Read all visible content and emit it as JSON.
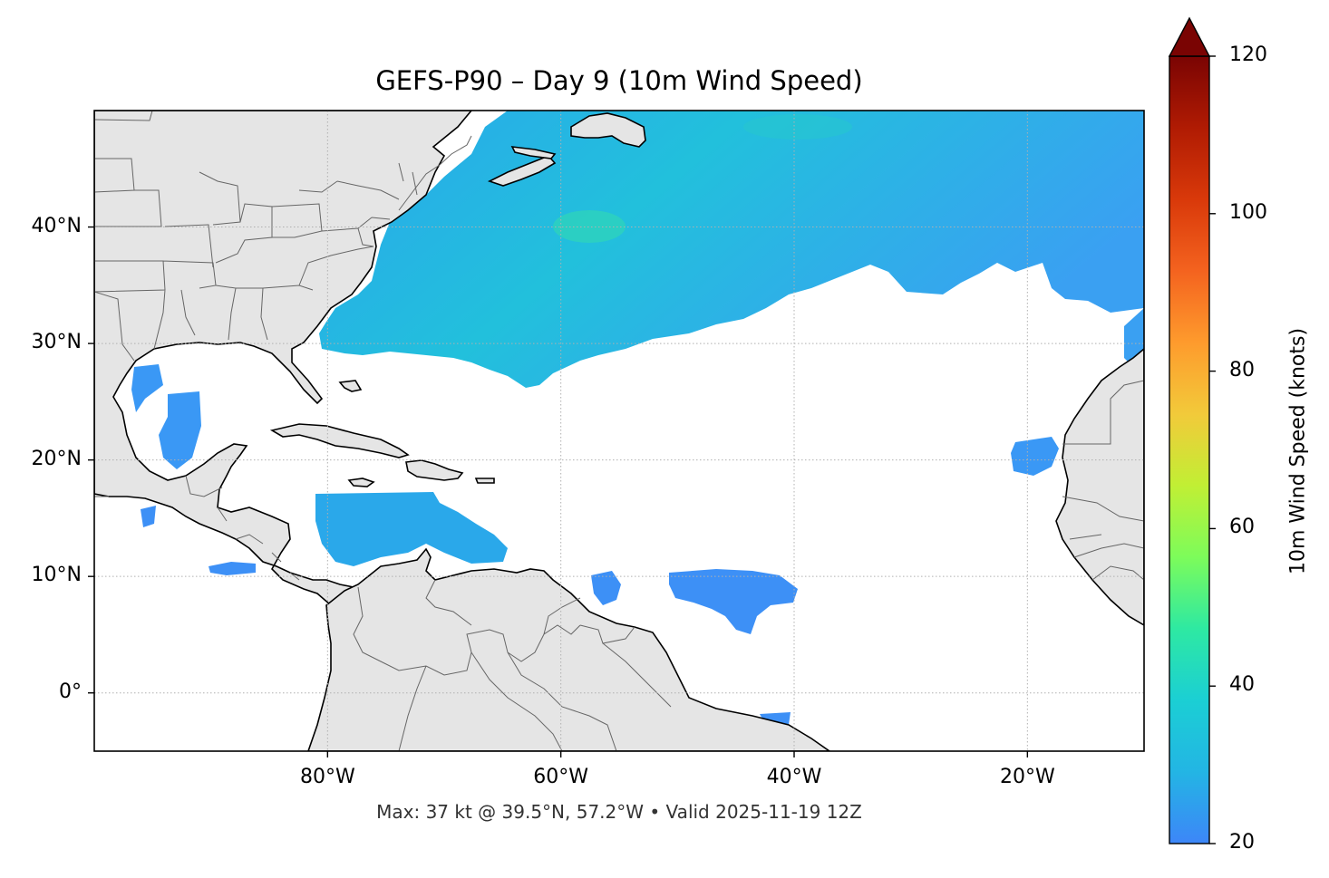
{
  "title": "GEFS-P90 – Day 9 (10m Wind Speed)",
  "footer": "Max: 37 kt @ 39.5°N, 57.2°W • Valid 2025-11-19 12Z",
  "map": {
    "projection": "PlateCarree",
    "extent": {
      "lon_min": -100,
      "lon_max": -10,
      "lat_min": -5,
      "lat_max": 50
    },
    "land_color": "#e5e5e5",
    "coastline_color": "#000000",
    "border_color": "#666666",
    "gridline_style": "dotted",
    "lat_ticks": [
      {
        "value": 40,
        "label": "40°N"
      },
      {
        "value": 30,
        "label": "30°N"
      },
      {
        "value": 20,
        "label": "20°N"
      },
      {
        "value": 10,
        "label": "10°N"
      },
      {
        "value": 0,
        "label": "0°"
      }
    ],
    "lon_ticks": [
      {
        "value": -80,
        "label": "80°W"
      },
      {
        "value": -60,
        "label": "60°W"
      },
      {
        "value": -40,
        "label": "40°W"
      },
      {
        "value": -20,
        "label": "20°W"
      }
    ]
  },
  "colorbar": {
    "label": "10m Wind Speed (knots)",
    "min": 20,
    "max": 120,
    "extend": "max",
    "colormap": "turbo",
    "ticks": [
      {
        "value": 20,
        "label": "20"
      },
      {
        "value": 40,
        "label": "40"
      },
      {
        "value": 60,
        "label": "60"
      },
      {
        "value": 80,
        "label": "80"
      },
      {
        "value": 100,
        "label": "100"
      },
      {
        "value": 120,
        "label": "120"
      }
    ],
    "stops": [
      "#3d86f8",
      "#23b5e4",
      "#1bcfd4",
      "#2ee9a2",
      "#7dfc5a",
      "#c1ef34",
      "#f2ca3a",
      "#fe9b2d",
      "#f4631f",
      "#d9390a",
      "#b01b03",
      "#7a0403"
    ]
  },
  "wind_regions": [
    {
      "name": "north-atlantic",
      "speed_kt": 27
    },
    {
      "name": "caribbean",
      "speed_kt": 25
    },
    {
      "name": "gulf-of-mexico",
      "speed_kt": 23
    },
    {
      "name": "tropical-atlantic",
      "speed_kt": 22
    },
    {
      "name": "cape-verde",
      "speed_kt": 22
    },
    {
      "name": "canary",
      "speed_kt": 23
    }
  ],
  "max_marker": {
    "lat": 39.5,
    "lon": -57.2,
    "speed_kt": 37
  }
}
